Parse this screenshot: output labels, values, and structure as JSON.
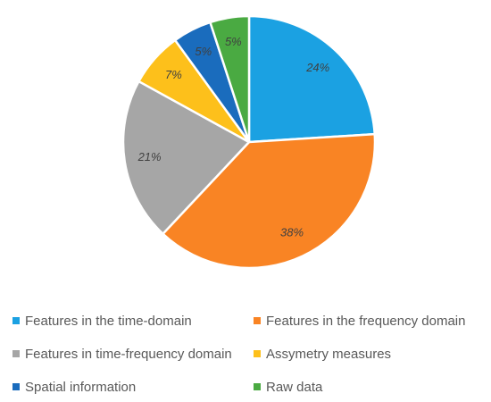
{
  "chart_data": {
    "type": "pie",
    "title": "",
    "categories": [
      "Features in the time-domain",
      "Features in the frequency domain",
      "Features in time-frequency domain",
      "Assymetry measures",
      "Spatial information",
      "Raw data"
    ],
    "values": [
      24,
      38,
      21,
      7,
      5,
      5
    ],
    "labels": [
      "24%",
      "38%",
      "21%",
      "7%",
      "5%",
      "5%"
    ],
    "colors": [
      "#1ba1e2",
      "#f98424",
      "#a6a6a6",
      "#fdc01b",
      "#1a6cbd",
      "#4aaa42"
    ],
    "legend_position": "bottom",
    "legend": {
      "items": [
        {
          "label": "Features in the time-domain",
          "color": "#1ba1e2"
        },
        {
          "label": "Features in the frequency domain",
          "color": "#f98424"
        },
        {
          "label": "Features in time-frequency domain",
          "color": "#a6a6a6"
        },
        {
          "label": "Assymetry measures",
          "color": "#fdc01b"
        },
        {
          "label": "Spatial information",
          "color": "#1a6cbd"
        },
        {
          "label": "Raw data",
          "color": "#4aaa42"
        }
      ]
    }
  }
}
